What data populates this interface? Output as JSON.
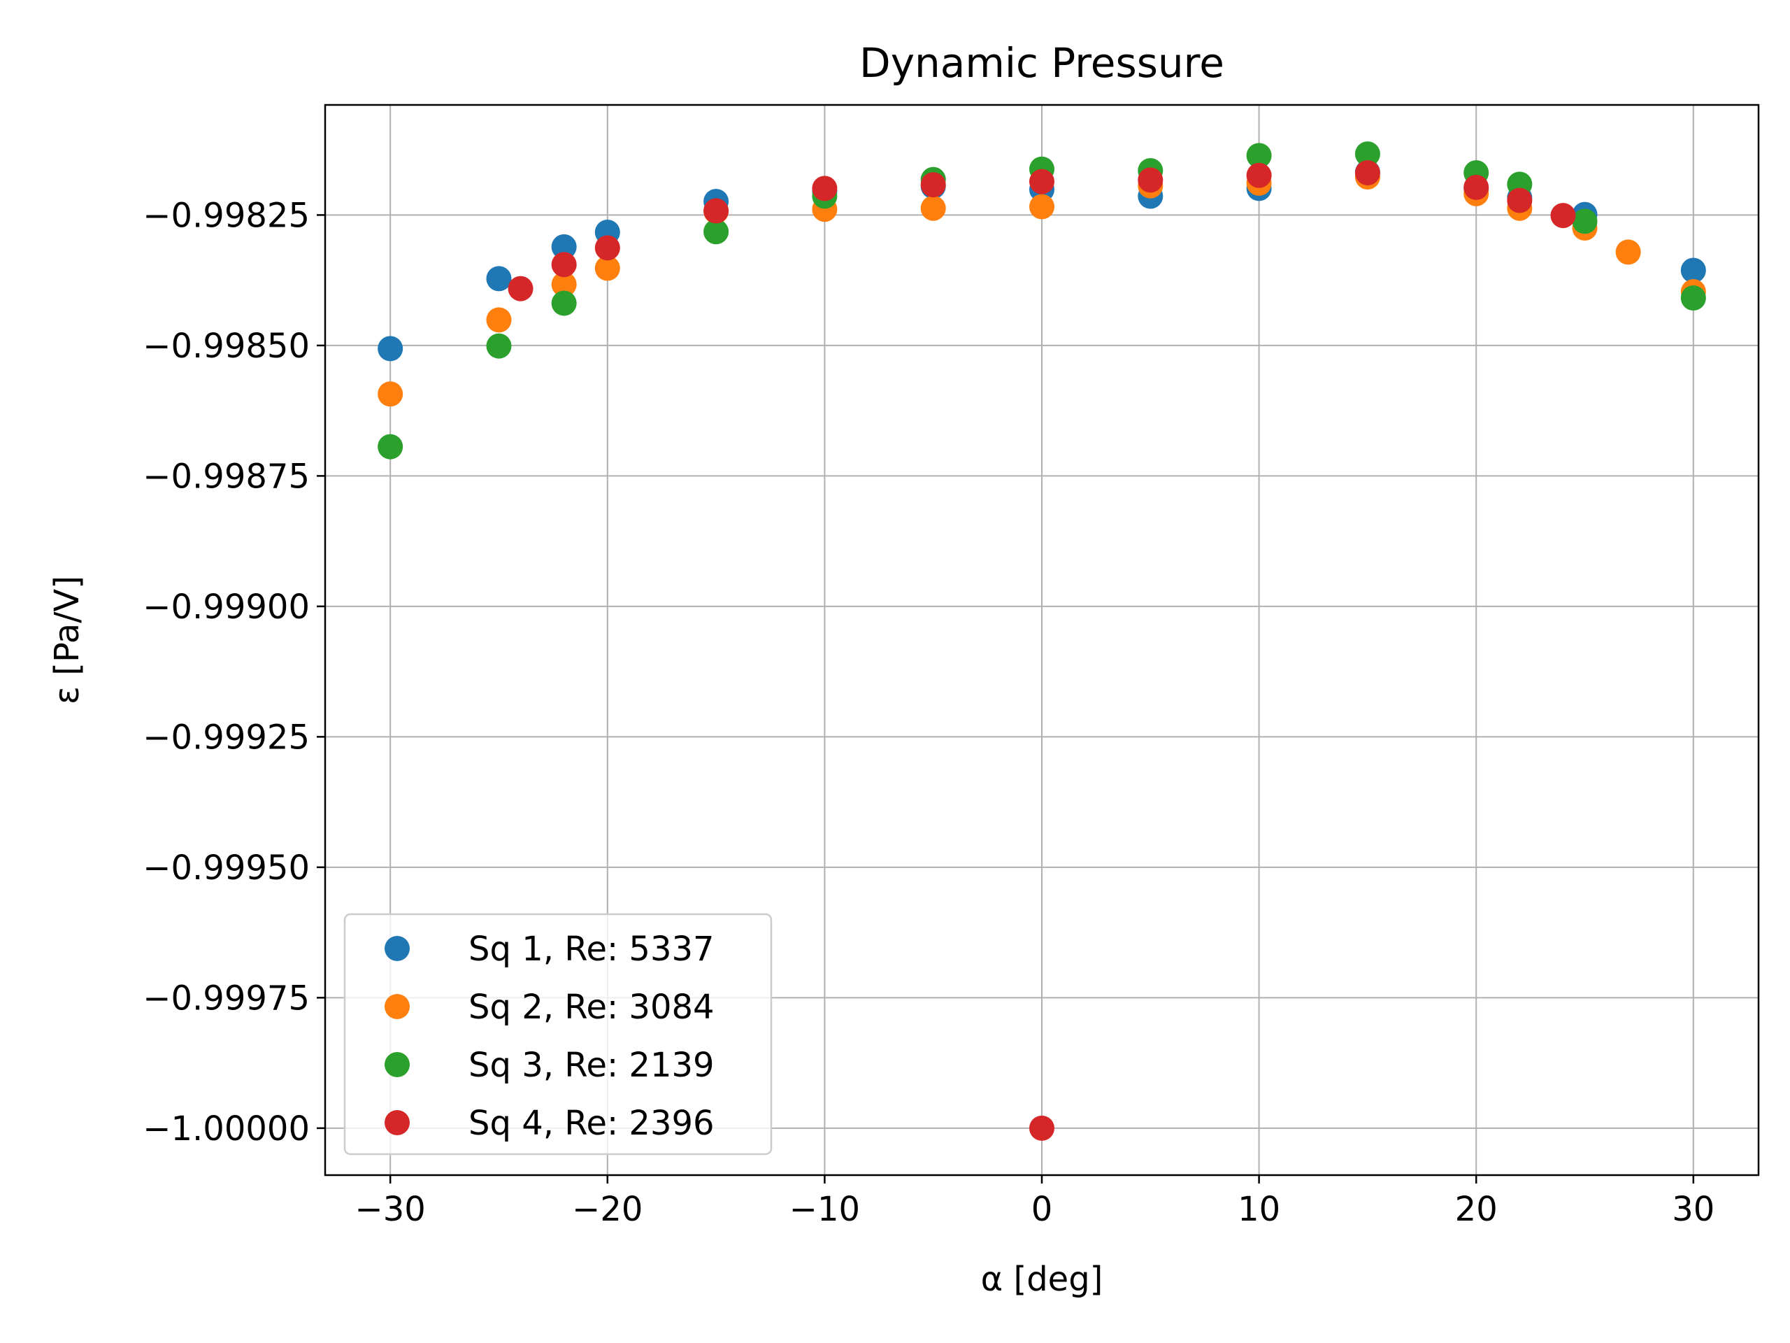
{
  "chart_data": {
    "type": "scatter",
    "title": "Dynamic Pressure",
    "xlabel": "α [deg]",
    "ylabel": "ε [Pa/V]",
    "xlim": [
      -33,
      33
    ],
    "ylim": [
      -1.00009,
      -0.998039
    ],
    "xticks": [
      -30,
      -20,
      -10,
      0,
      10,
      20,
      30
    ],
    "xtick_labels": [
      "−30",
      "−20",
      "−10",
      "0",
      "10",
      "20",
      "30"
    ],
    "yticks": [
      -0.99825,
      -0.9985,
      -0.99875,
      -0.999,
      -0.99925,
      -0.9995,
      -0.99975,
      -1.0
    ],
    "ytick_labels": [
      "−0.99825",
      "−0.99850",
      "−0.99875",
      "−0.99900",
      "−0.99925",
      "−0.99950",
      "−0.99975",
      "−1.00000"
    ],
    "grid": true,
    "legend_position": "lower-left",
    "series": [
      {
        "name": "Sq 1, Re: 5337",
        "color": "#1f77b4",
        "x": [
          -30,
          -25,
          -22,
          -20,
          -15,
          -10,
          -5,
          0,
          5,
          10,
          15,
          20,
          22,
          25,
          30
        ],
        "y": [
          -0.998506,
          -0.998372,
          -0.998311,
          -0.998283,
          -0.998224,
          -0.998204,
          -0.998195,
          -0.998201,
          -0.998214,
          -0.998199,
          -0.998168,
          -0.998199,
          -0.998217,
          -0.998249,
          -0.998356
        ]
      },
      {
        "name": "Sq 2, Re: 3084",
        "color": "#ff7f0e",
        "x": [
          -30,
          -25,
          -22,
          -20,
          -15,
          -10,
          -5,
          0,
          5,
          10,
          15,
          20,
          22,
          25,
          27,
          30
        ],
        "y": [
          -0.998593,
          -0.998451,
          -0.998383,
          -0.998352,
          -0.998243,
          -0.998239,
          -0.998237,
          -0.998234,
          -0.998194,
          -0.998189,
          -0.998177,
          -0.998209,
          -0.998237,
          -0.998275,
          -0.998321,
          -0.998397
        ]
      },
      {
        "name": "Sq 3, Re: 2139",
        "color": "#2ca02c",
        "x": [
          -30,
          -25,
          -22,
          -15,
          -10,
          -5,
          0,
          5,
          10,
          15,
          20,
          22,
          25,
          30
        ],
        "y": [
          -0.998694,
          -0.998501,
          -0.998419,
          -0.998282,
          -0.998214,
          -0.998182,
          -0.998162,
          -0.998165,
          -0.998136,
          -0.998133,
          -0.998169,
          -0.998191,
          -0.998262,
          -0.998409
        ]
      },
      {
        "name": "Sq 4, Re: 2396",
        "color": "#d62728",
        "x": [
          -24,
          -22,
          -20,
          -15,
          -10,
          -5,
          0,
          0,
          5,
          10,
          15,
          20,
          22,
          24
        ],
        "y": [
          -0.998391,
          -0.998345,
          -0.998313,
          -0.998242,
          -0.998199,
          -0.998192,
          -0.998186,
          -1.0,
          -0.998183,
          -0.998174,
          -0.998169,
          -0.998197,
          -0.998222,
          -0.998251
        ]
      }
    ]
  }
}
